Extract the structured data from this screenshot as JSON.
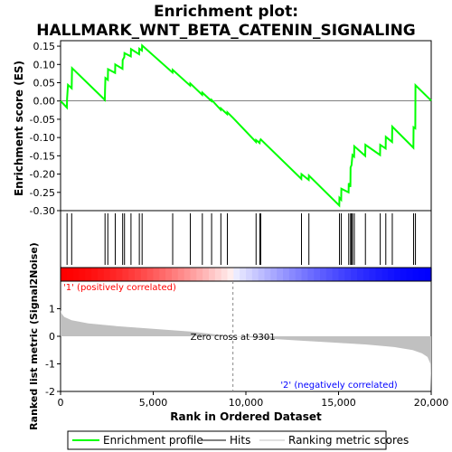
{
  "chart_data": {
    "type": "line",
    "title_line1": "Enrichment plot:",
    "title_line2": "HALLMARK_WNT_BETA_CATENIN_SIGNALING",
    "x_max": 20000,
    "x_ticks": [
      0,
      5000,
      10000,
      15000,
      20000
    ],
    "x_tick_labels": [
      "0",
      "5,000",
      "10,000",
      "15,000",
      "20,000"
    ],
    "xlabel": "Rank in Ordered Dataset",
    "es_panel": {
      "ylabel": "Enrichment score (ES)",
      "ylim": [
        -0.3,
        0.165
      ],
      "y_ticks": [
        0.15,
        0.1,
        0.05,
        0.0,
        -0.05,
        -0.1,
        -0.15,
        -0.2,
        -0.25,
        -0.3
      ],
      "y_tick_labels": [
        "0.15",
        "0.10",
        "0.05",
        "0.00",
        "-0.05",
        "-0.10",
        "-0.15",
        "-0.20",
        "-0.25",
        "-0.30"
      ],
      "color": "#00ff00",
      "hits": [
        350,
        600,
        2400,
        2550,
        2950,
        3350,
        3450,
        3800,
        4250,
        4400,
        6050,
        7000,
        7650,
        8150,
        8650,
        9000,
        10550,
        10750,
        10800,
        13000,
        13400,
        15050,
        15150,
        15550,
        15650,
        15700,
        15750,
        15850,
        16450,
        17250,
        17550,
        17900,
        19050,
        19150
      ],
      "points": [
        [
          0,
          0.0
        ],
        [
          20,
          -0.001
        ],
        [
          340,
          -0.018
        ],
        [
          350,
          0.006
        ],
        [
          400,
          0.044
        ],
        [
          600,
          0.035
        ],
        [
          620,
          0.09
        ],
        [
          2390,
          0.003
        ],
        [
          2400,
          0.03
        ],
        [
          2420,
          0.063
        ],
        [
          2550,
          0.058
        ],
        [
          2560,
          0.087
        ],
        [
          2940,
          0.077
        ],
        [
          2950,
          0.1
        ],
        [
          3340,
          0.088
        ],
        [
          3350,
          0.112
        ],
        [
          3440,
          0.12
        ],
        [
          3450,
          0.131
        ],
        [
          3790,
          0.122
        ],
        [
          3800,
          0.142
        ],
        [
          4240,
          0.128
        ],
        [
          4250,
          0.143
        ],
        [
          4390,
          0.138
        ],
        [
          4400,
          0.152
        ],
        [
          6040,
          0.078
        ],
        [
          6050,
          0.085
        ],
        [
          6990,
          0.042
        ],
        [
          7000,
          0.048
        ],
        [
          7640,
          0.017
        ],
        [
          7650,
          0.023
        ],
        [
          8140,
          0.0
        ],
        [
          8150,
          0.003
        ],
        [
          8640,
          -0.024
        ],
        [
          8650,
          -0.02
        ],
        [
          8990,
          -0.036
        ],
        [
          9000,
          -0.031
        ],
        [
          9301,
          -0.046
        ],
        [
          10540,
          -0.112
        ],
        [
          10550,
          -0.107
        ],
        [
          10740,
          -0.115
        ],
        [
          10750,
          -0.11
        ],
        [
          10800,
          -0.105
        ],
        [
          12990,
          -0.213
        ],
        [
          13000,
          -0.2
        ],
        [
          13390,
          -0.216
        ],
        [
          13400,
          -0.204
        ],
        [
          15040,
          -0.286
        ],
        [
          15050,
          -0.265
        ],
        [
          15140,
          -0.27
        ],
        [
          15150,
          -0.24
        ],
        [
          15540,
          -0.25
        ],
        [
          15550,
          -0.225
        ],
        [
          15640,
          -0.235
        ],
        [
          15650,
          -0.182
        ],
        [
          15700,
          -0.175
        ],
        [
          15750,
          -0.148
        ],
        [
          15840,
          -0.152
        ],
        [
          15850,
          -0.124
        ],
        [
          16440,
          -0.15
        ],
        [
          16450,
          -0.12
        ],
        [
          17240,
          -0.148
        ],
        [
          17250,
          -0.12
        ],
        [
          17540,
          -0.13
        ],
        [
          17550,
          -0.098
        ],
        [
          17890,
          -0.112
        ],
        [
          17900,
          -0.07
        ],
        [
          19040,
          -0.128
        ],
        [
          19050,
          -0.072
        ],
        [
          19140,
          -0.075
        ],
        [
          19150,
          0.043
        ],
        [
          20000,
          0.001
        ]
      ]
    },
    "rank_panel": {
      "ylabel": "Ranked list metric (Signal2Noise)",
      "ylim": [
        -2.0,
        2.0
      ],
      "y_ticks": [
        1,
        0,
        -1,
        -2
      ],
      "y_tick_labels": [
        "1",
        "0",
        "-1",
        "-2"
      ],
      "zero_cross": 9301,
      "zero_cross_label": "Zero cross at 9301",
      "pos_label": "'1' (positively correlated)",
      "neg_label": "'2' (negatively correlated)",
      "pos_color": "#ff0000",
      "neg_color": "#0000ff",
      "fill_color": "#c0c0c0",
      "profile": [
        [
          0,
          0.95
        ],
        [
          60,
          0.82
        ],
        [
          200,
          0.7
        ],
        [
          600,
          0.58
        ],
        [
          1500,
          0.47
        ],
        [
          3000,
          0.37
        ],
        [
          5000,
          0.27
        ],
        [
          7000,
          0.17
        ],
        [
          9301,
          0.0
        ],
        [
          11000,
          -0.08
        ],
        [
          13000,
          -0.16
        ],
        [
          15000,
          -0.24
        ],
        [
          16500,
          -0.3
        ],
        [
          18000,
          -0.39
        ],
        [
          19000,
          -0.5
        ],
        [
          19500,
          -0.62
        ],
        [
          19800,
          -0.75
        ],
        [
          19960,
          -1.0
        ],
        [
          20000,
          -1.95
        ]
      ]
    },
    "legend": [
      "Enrichment profile",
      "Hits",
      "Ranking metric scores"
    ]
  }
}
